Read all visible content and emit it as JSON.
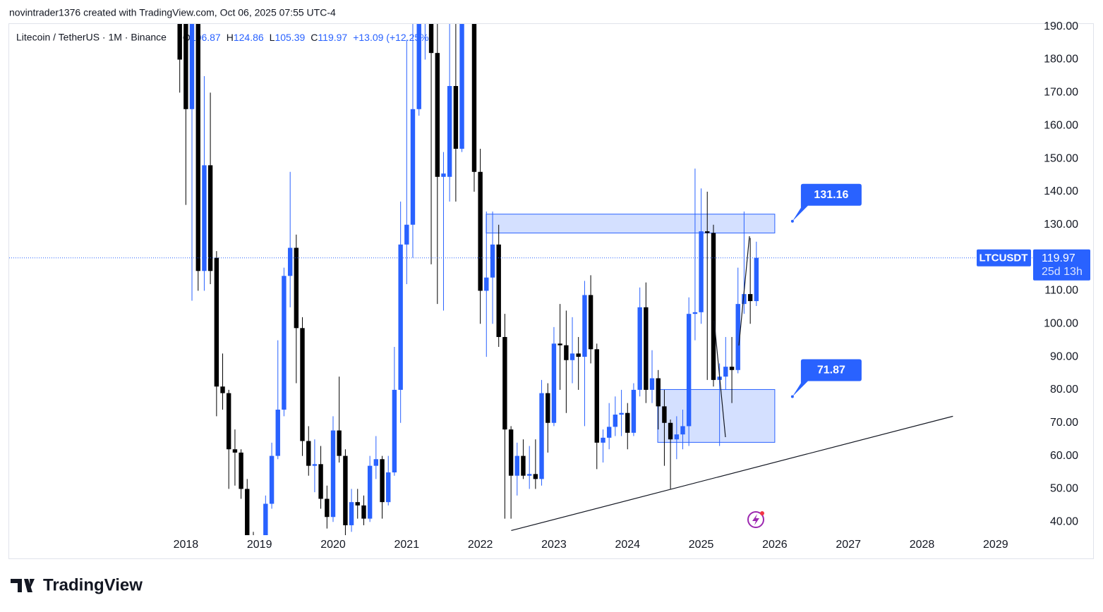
{
  "header": "novintrader1376 created with TradingView.com, Oct 06, 2025 07:55 UTC-4",
  "footer": {
    "brand": "TradingView"
  },
  "chart_data": {
    "type": "candlestick",
    "symbol": "LTCUSDT",
    "countdown": "25d 13h",
    "legend": {
      "title": "Litecoin / TetherUS · 1M · Binance",
      "ohlc_keys": [
        "O",
        "H",
        "L",
        "C"
      ],
      "change": "+13.09 (+12.25%)"
    },
    "up_color": "#2962ff",
    "down_color": "#000000",
    "xlim": [
      2015.6,
      2029.5
    ],
    "ylim": [
      36,
      191
    ],
    "xticks": [
      2018,
      2019,
      2020,
      2021,
      2022,
      2023,
      2024,
      2025,
      2026,
      2027,
      2028,
      2029
    ],
    "yticks": [
      {
        "value": 40,
        "label": "40.00"
      },
      {
        "value": 50,
        "label": "50.00"
      },
      {
        "value": 60,
        "label": "60.00"
      },
      {
        "value": 70,
        "label": "70.00"
      },
      {
        "value": 80,
        "label": "80.00"
      },
      {
        "value": 90,
        "label": "90.00"
      },
      {
        "value": 100,
        "label": "100.00"
      },
      {
        "value": 110,
        "label": "110.00"
      },
      {
        "value": 120,
        "label": "120.00"
      },
      {
        "value": 130,
        "label": "130.00"
      },
      {
        "value": 140,
        "label": "140.00"
      },
      {
        "value": 150,
        "label": "150.00"
      },
      {
        "value": 160,
        "label": "160.00"
      },
      {
        "value": 170,
        "label": "170.00"
      },
      {
        "value": 180,
        "label": "180.00"
      },
      {
        "value": 190,
        "label": "190.00"
      }
    ],
    "x": [
      2017.917,
      2018,
      2018.083,
      2018.167,
      2018.25,
      2018.333,
      2018.417,
      2018.5,
      2018.583,
      2018.667,
      2018.75,
      2018.833,
      2018.917,
      2019,
      2019.083,
      2019.167,
      2019.25,
      2019.333,
      2019.417,
      2019.5,
      2019.583,
      2019.667,
      2019.75,
      2019.833,
      2019.917,
      2020,
      2020.083,
      2020.167,
      2020.25,
      2020.333,
      2020.417,
      2020.5,
      2020.583,
      2020.667,
      2020.75,
      2020.833,
      2020.917,
      2021,
      2021.083,
      2021.167,
      2021.25,
      2021.333,
      2021.417,
      2021.5,
      2021.583,
      2021.667,
      2021.75,
      2021.833,
      2021.917,
      2022,
      2022.083,
      2022.167,
      2022.25,
      2022.333,
      2022.417,
      2022.5,
      2022.583,
      2022.667,
      2022.75,
      2022.833,
      2022.917,
      2023,
      2023.083,
      2023.167,
      2023.25,
      2023.333,
      2023.417,
      2023.5,
      2023.583,
      2023.667,
      2023.75,
      2023.833,
      2023.917,
      2024,
      2024.083,
      2024.167,
      2024.25,
      2024.333,
      2024.417,
      2024.5,
      2024.583,
      2024.667,
      2024.75,
      2024.833,
      2024.917,
      2025,
      2025.083,
      2025.167,
      2025.25,
      2025.333,
      2025.417,
      2025.5,
      2025.583,
      2025.667,
      2025.75
    ],
    "open": [
      260,
      230,
      165,
      200,
      116,
      148,
      120,
      81,
      79,
      62,
      61,
      50,
      33,
      31,
      32,
      45.5,
      60,
      74,
      114.5,
      123,
      98.7,
      64.5,
      57,
      57.5,
      47,
      41.5,
      67.7,
      60,
      39,
      46,
      45,
      41,
      57,
      59,
      46,
      55,
      80,
      124,
      130,
      165,
      196,
      260,
      182,
      144.5,
      144.5,
      172,
      153,
      198,
      205,
      146,
      110,
      114,
      124,
      96,
      68,
      54,
      60,
      54,
      54.5,
      53,
      79,
      70,
      94,
      93.5,
      89,
      91,
      90,
      108.7,
      92.3,
      64,
      65.5,
      68.8,
      72.5,
      73,
      67,
      80,
      105,
      80,
      83.5,
      75,
      70,
      65,
      66.5,
      69,
      103,
      103.5,
      128,
      127.5,
      83,
      84,
      87,
      86,
      106,
      109,
      106.87
    ],
    "high": [
      300,
      250,
      230,
      225,
      175,
      170,
      122,
      91,
      80,
      68,
      62,
      53,
      37,
      35,
      48,
      64,
      95,
      117,
      146,
      127,
      102,
      69,
      65,
      63,
      51,
      72,
      84,
      62,
      50,
      50,
      48,
      60,
      66,
      60,
      60,
      93,
      137,
      186,
      247,
      213,
      305,
      413,
      200,
      152,
      193,
      200,
      210,
      296,
      232,
      153,
      134,
      134,
      130,
      103,
      69,
      64,
      65,
      63,
      65,
      83,
      82,
      99,
      106,
      104,
      102,
      96,
      113,
      114.7,
      94,
      68,
      76,
      78,
      80,
      76,
      82,
      111,
      112.5,
      92,
      86,
      80,
      71,
      72,
      74,
      108,
      147,
      141,
      140,
      130,
      88,
      96,
      96,
      117,
      134,
      126,
      124.86
    ],
    "low": [
      170,
      136,
      107,
      110,
      110,
      112,
      72,
      74,
      50,
      51,
      47,
      29,
      23,
      29,
      31,
      44,
      59,
      72,
      105,
      82,
      60,
      54,
      49,
      44,
      38,
      40,
      58,
      27,
      37,
      41,
      39,
      40,
      53,
      41,
      45,
      54,
      70,
      112,
      120,
      163,
      180,
      118,
      106,
      104,
      137,
      137,
      152,
      195,
      140,
      100,
      90,
      100,
      93,
      41,
      41,
      48,
      53,
      50,
      50,
      51,
      61,
      69,
      80,
      73,
      82,
      80,
      69,
      88,
      56,
      58,
      62,
      66,
      66,
      62,
      66,
      78,
      76,
      76,
      68,
      57,
      50,
      59,
      62,
      63,
      95,
      100,
      83,
      81,
      63,
      80,
      76,
      85,
      103,
      100,
      105.39
    ],
    "close": [
      180,
      165,
      200,
      116,
      148,
      116,
      81,
      79,
      62,
      61,
      50,
      33,
      31,
      32,
      45.5,
      60,
      74,
      114.5,
      123,
      98.7,
      64.5,
      57,
      57.5,
      47,
      41.5,
      67.7,
      60,
      39,
      46,
      45,
      41,
      57,
      59,
      46,
      55,
      80,
      124,
      130,
      165,
      196,
      260,
      182,
      144.5,
      145.5,
      172,
      153,
      198,
      205,
      146,
      110,
      114,
      124,
      96,
      68,
      54,
      60,
      54,
      54.5,
      53,
      79,
      70,
      94,
      93.5,
      89,
      91,
      90,
      108.7,
      92.3,
      64,
      65.5,
      68.8,
      72.5,
      73,
      67,
      80,
      105,
      80,
      83.5,
      75,
      70,
      65,
      66.5,
      69,
      103,
      103.5,
      128,
      127.5,
      83,
      84,
      87,
      86,
      106,
      109,
      106.87,
      119.97
    ],
    "zones": [
      {
        "x": [
          2022.08,
          2026.0
        ],
        "y": [
          127.5,
          133.2
        ],
        "label": 131.16
      },
      {
        "x": [
          2024.41,
          2026.0
        ],
        "y": [
          64.1,
          80.1
        ],
        "label": 71.87
      }
    ],
    "trendline": {
      "x": [
        2022.42,
        2028.42
      ],
      "y": [
        37.4,
        72.0
      ]
    }
  }
}
